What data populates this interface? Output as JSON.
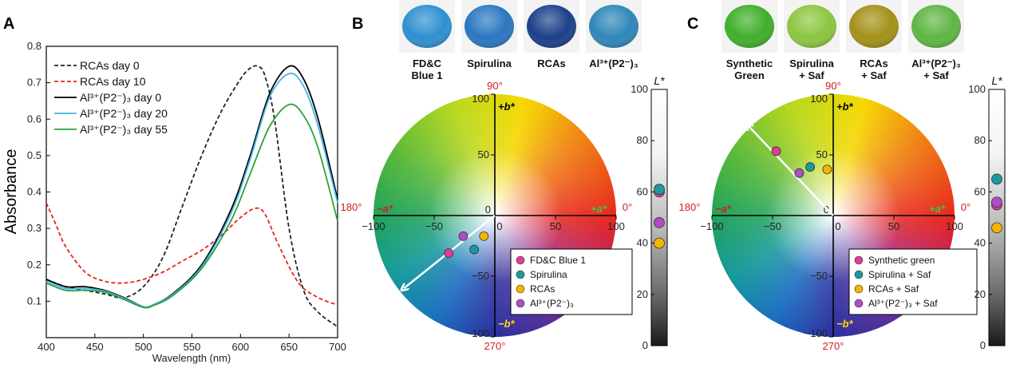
{
  "panels": {
    "a": "A",
    "b": "B",
    "c": "C"
  },
  "colors": {
    "rcas_day0": "#222222",
    "rcas_day10": "#e3261c",
    "al_day0": "#000000",
    "al_day20": "#47b5e6",
    "al_day55": "#2aa23c",
    "marker_pink": "#e23c94",
    "marker_teal": "#1a9aa0",
    "marker_yellow": "#f4b400",
    "marker_purple": "#b04cc6",
    "angle_red": "#d11e1e",
    "b_yellow": "#ffdc00"
  },
  "swatches_b": [
    {
      "line1": "FD&C",
      "line2": "Blue 1",
      "color": "#2e8fd0"
    },
    {
      "line1": "Spirulina",
      "line2": "",
      "color": "#2a77c0"
    },
    {
      "line1": "RCAs",
      "line2": "",
      "color": "#1d3f8a"
    },
    {
      "line1": "Al³⁺(P2⁻)₃",
      "line2": "",
      "color": "#2f86b8"
    }
  ],
  "swatches_c": [
    {
      "line1": "Synthetic",
      "line2": "Green",
      "color": "#3fae2a"
    },
    {
      "line1": "Spirulina",
      "line2": "+ Saf",
      "color": "#8cc63f"
    },
    {
      "line1": "RCAs",
      "line2": "+ Saf",
      "color": "#a39018"
    },
    {
      "line1": "Al³⁺(P2⁻)₃",
      "line2": "+ Saf",
      "color": "#5fb544"
    }
  ],
  "chart_data": [
    {
      "type": "line",
      "panel": "A",
      "xlabel": "Wavelength (nm)",
      "ylabel": "Absorbance",
      "xlim": [
        400,
        700
      ],
      "ylim": [
        0,
        0.8
      ],
      "xticks": [
        400,
        450,
        500,
        550,
        600,
        650,
        700
      ],
      "yticks": [
        0.1,
        0.2,
        0.3,
        0.4,
        0.5,
        0.6,
        0.7,
        0.8
      ],
      "legend": "top-left",
      "series": [
        {
          "name": "RCAs day 0",
          "color": "#222222",
          "dash": true,
          "x": [
            400,
            420,
            440,
            460,
            480,
            500,
            520,
            540,
            560,
            580,
            600,
            610,
            618,
            625,
            635,
            650,
            665,
            680,
            700
          ],
          "y": [
            0.16,
            0.14,
            0.13,
            0.12,
            0.11,
            0.14,
            0.22,
            0.36,
            0.5,
            0.62,
            0.71,
            0.74,
            0.745,
            0.72,
            0.6,
            0.3,
            0.13,
            0.07,
            0.03
          ]
        },
        {
          "name": "RCAs day 10",
          "color": "#e3261c",
          "dash": true,
          "x": [
            400,
            410,
            420,
            440,
            460,
            480,
            500,
            520,
            540,
            560,
            580,
            600,
            615,
            625,
            640,
            660,
            680,
            700
          ],
          "y": [
            0.37,
            0.31,
            0.25,
            0.18,
            0.155,
            0.15,
            0.16,
            0.18,
            0.21,
            0.24,
            0.28,
            0.33,
            0.355,
            0.34,
            0.25,
            0.15,
            0.11,
            0.09
          ]
        },
        {
          "name": "Al³⁺(P2⁻)₃ day 0",
          "color": "#000000",
          "dash": false,
          "x": [
            400,
            420,
            440,
            460,
            480,
            500,
            510,
            530,
            560,
            590,
            610,
            630,
            650,
            665,
            680,
            700
          ],
          "y": [
            0.16,
            0.14,
            0.14,
            0.13,
            0.11,
            0.085,
            0.09,
            0.12,
            0.2,
            0.35,
            0.5,
            0.67,
            0.745,
            0.71,
            0.6,
            0.38
          ]
        },
        {
          "name": "Al³⁺(P2⁻)₃ day 20",
          "color": "#47b5e6",
          "dash": false,
          "x": [
            400,
            420,
            440,
            460,
            480,
            500,
            510,
            530,
            560,
            590,
            610,
            630,
            650,
            665,
            680,
            700
          ],
          "y": [
            0.155,
            0.135,
            0.135,
            0.128,
            0.108,
            0.085,
            0.09,
            0.118,
            0.195,
            0.34,
            0.49,
            0.66,
            0.725,
            0.69,
            0.58,
            0.37
          ]
        },
        {
          "name": "Al³⁺(P2⁻)₃ day 55",
          "color": "#2aa23c",
          "dash": false,
          "x": [
            400,
            420,
            440,
            460,
            480,
            500,
            510,
            530,
            560,
            590,
            610,
            630,
            650,
            665,
            680,
            700
          ],
          "y": [
            0.15,
            0.13,
            0.13,
            0.125,
            0.105,
            0.083,
            0.088,
            0.115,
            0.19,
            0.32,
            0.45,
            0.58,
            0.64,
            0.61,
            0.52,
            0.32
          ]
        }
      ]
    },
    {
      "type": "scatter",
      "panel": "B",
      "xlim": [
        -100,
        100
      ],
      "ylim": [
        -100,
        100
      ],
      "xticks": [
        -100,
        -50,
        0,
        50,
        100
      ],
      "yticks": [
        -100,
        -50,
        0,
        50,
        100
      ],
      "angles": [
        "90°",
        "180°",
        "0°",
        "270°"
      ],
      "axis_labels": {
        "pos_b": "+b*",
        "neg_b": "−b*",
        "pos_a": "+a*",
        "neg_a": "−a*"
      },
      "legend": "bottom-right",
      "arrow": {
        "from": [
          0,
          0
        ],
        "to": [
          -75,
          -60
        ]
      },
      "points": [
        {
          "name": "FD&C Blue 1",
          "a": -38,
          "b": -31,
          "color": "#e23c94"
        },
        {
          "name": "Spirulina",
          "a": -17,
          "b": -28,
          "color": "#1a9aa0"
        },
        {
          "name": "RCAs",
          "a": -9,
          "b": -17,
          "color": "#f4b400"
        },
        {
          "name": "Al³⁺(P2⁻)₃",
          "a": -26,
          "b": -17,
          "color": "#b04cc6"
        }
      ],
      "lightness": {
        "label": "L*",
        "ylim": [
          0,
          100
        ],
        "yticks": [
          0,
          20,
          40,
          60,
          80,
          100
        ],
        "values": [
          {
            "L": 60,
            "color": "#e23c94"
          },
          {
            "L": 61,
            "color": "#1a9aa0"
          },
          {
            "L": 40,
            "color": "#f4b400"
          },
          {
            "L": 48,
            "color": "#b04cc6"
          }
        ]
      }
    },
    {
      "type": "scatter",
      "panel": "C",
      "xlim": [
        -100,
        100
      ],
      "ylim": [
        -100,
        100
      ],
      "xticks": [
        -100,
        -50,
        0,
        50,
        100
      ],
      "yticks": [
        -100,
        -50,
        0,
        50,
        100
      ],
      "angles": [
        "90°",
        "180°",
        "0°",
        "270°"
      ],
      "axis_labels": {
        "pos_b": "+b*",
        "neg_b": "−b*",
        "pos_a": "+a*",
        "neg_a": "−a*"
      },
      "legend": "bottom-right",
      "arrow": {
        "from": [
          0,
          0
        ],
        "to": [
          -70,
          74
        ]
      },
      "points": [
        {
          "name": "Synthetic green",
          "a": -47,
          "b": 53,
          "color": "#e23c94"
        },
        {
          "name": "Spirulina + Saf",
          "a": -19,
          "b": 40,
          "color": "#1a9aa0"
        },
        {
          "name": "RCAs + Saf",
          "a": -5,
          "b": 38,
          "color": "#f4b400"
        },
        {
          "name": "Al³⁺(P2⁻)₃ + Saf",
          "a": -28,
          "b": 35,
          "color": "#b04cc6"
        }
      ],
      "lightness": {
        "label": "L*",
        "ylim": [
          0,
          100
        ],
        "yticks": [
          0,
          20,
          40,
          60,
          80,
          100
        ],
        "values": [
          {
            "L": 55,
            "color": "#e23c94"
          },
          {
            "L": 65,
            "color": "#1a9aa0"
          },
          {
            "L": 46,
            "color": "#f4b400"
          },
          {
            "L": 56,
            "color": "#b04cc6"
          }
        ]
      }
    }
  ]
}
